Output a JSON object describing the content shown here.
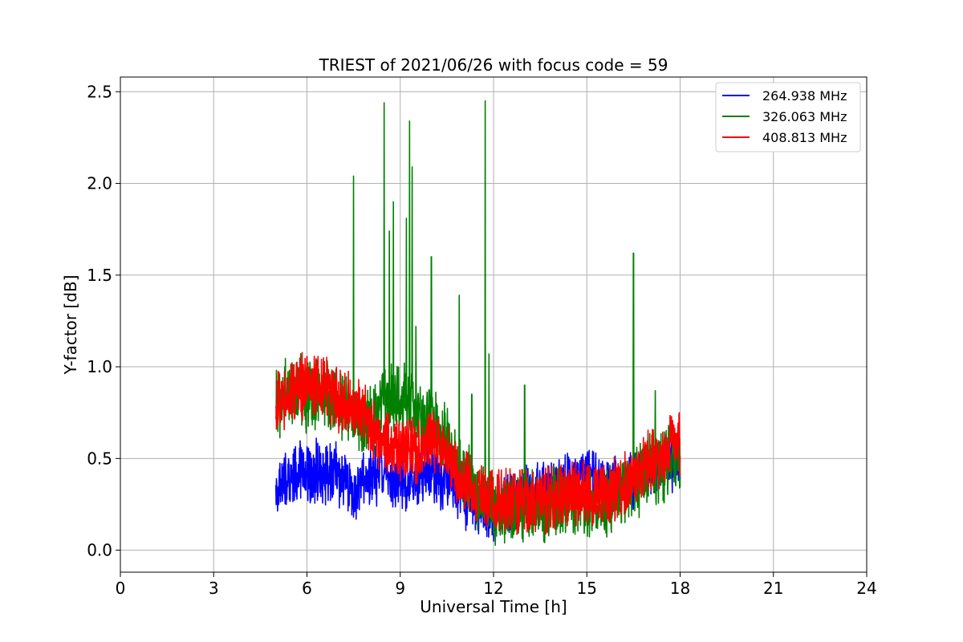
{
  "chart_data": {
    "type": "line",
    "title": "TRIEST of 2021/06/26 with focus code = 59",
    "xlabel": "Universal Time [h]",
    "ylabel": "Y-factor [dB]",
    "xlim": [
      0,
      24
    ],
    "ylim": [
      -0.12,
      2.58
    ],
    "x_ticks": [
      0,
      3,
      6,
      9,
      12,
      15,
      18,
      21,
      24
    ],
    "y_ticks": [
      0.0,
      0.5,
      1.0,
      1.5,
      2.0,
      2.5
    ],
    "x_tick_labels": [
      "0",
      "3",
      "6",
      "9",
      "12",
      "15",
      "18",
      "21",
      "24"
    ],
    "y_tick_labels": [
      "0.0",
      "0.5",
      "1.0",
      "1.5",
      "2.0",
      "2.5"
    ],
    "grid": true,
    "legend_position": "top-right",
    "series": [
      {
        "name": "264.938 MHz",
        "color": "#0000ff",
        "x": [
          5.0,
          5.5,
          6.0,
          6.5,
          7.0,
          7.5,
          8.0,
          8.5,
          9.0,
          9.5,
          10.0,
          10.5,
          11.0,
          11.5,
          12.0,
          12.5,
          13.0,
          13.5,
          14.0,
          14.5,
          15.0,
          15.5,
          16.0,
          16.5,
          17.0,
          17.5,
          18.0
        ],
        "values": [
          0.33,
          0.4,
          0.43,
          0.43,
          0.4,
          0.3,
          0.4,
          0.45,
          0.35,
          0.4,
          0.43,
          0.38,
          0.3,
          0.25,
          0.2,
          0.25,
          0.3,
          0.32,
          0.35,
          0.38,
          0.4,
          0.38,
          0.35,
          0.4,
          0.42,
          0.48,
          0.5
        ],
        "spread": 0.22
      },
      {
        "name": "326.063 MHz",
        "color": "#008000",
        "x": [
          5.0,
          5.5,
          6.0,
          6.5,
          7.0,
          7.5,
          8.0,
          8.5,
          9.0,
          9.5,
          10.0,
          10.5,
          11.0,
          11.5,
          12.0,
          12.5,
          13.0,
          13.5,
          14.0,
          14.5,
          15.0,
          15.5,
          16.0,
          16.5,
          17.0,
          17.5,
          18.0
        ],
        "values": [
          0.8,
          0.88,
          0.85,
          0.85,
          0.82,
          0.7,
          0.68,
          0.8,
          0.85,
          0.75,
          0.72,
          0.6,
          0.42,
          0.3,
          0.2,
          0.22,
          0.25,
          0.22,
          0.25,
          0.25,
          0.25,
          0.25,
          0.3,
          0.35,
          0.45,
          0.45,
          0.52
        ],
        "spread": 0.26,
        "spikes": [
          [
            7.5,
            2.04
          ],
          [
            8.48,
            2.44
          ],
          [
            8.65,
            1.74
          ],
          [
            8.78,
            1.9
          ],
          [
            9.2,
            1.81
          ],
          [
            9.3,
            2.34
          ],
          [
            9.38,
            2.09
          ],
          [
            9.5,
            1.22
          ],
          [
            10.0,
            1.6
          ],
          [
            10.9,
            1.39
          ],
          [
            11.3,
            0.85
          ],
          [
            11.73,
            2.45
          ],
          [
            11.85,
            1.07
          ],
          [
            13.0,
            0.9
          ],
          [
            16.5,
            1.62
          ],
          [
            17.2,
            0.87
          ]
        ]
      },
      {
        "name": "408.813 MHz",
        "color": "#ff0000",
        "x": [
          5.0,
          5.5,
          6.0,
          6.5,
          7.0,
          7.5,
          8.0,
          8.5,
          9.0,
          9.5,
          10.0,
          10.5,
          11.0,
          11.5,
          12.0,
          12.5,
          13.0,
          13.5,
          14.0,
          14.5,
          15.0,
          15.5,
          16.0,
          16.5,
          17.0,
          17.5,
          18.0
        ],
        "values": [
          0.8,
          0.86,
          0.9,
          0.88,
          0.82,
          0.78,
          0.68,
          0.58,
          0.55,
          0.55,
          0.6,
          0.55,
          0.38,
          0.32,
          0.28,
          0.28,
          0.27,
          0.28,
          0.28,
          0.3,
          0.3,
          0.3,
          0.33,
          0.4,
          0.48,
          0.52,
          0.6
        ],
        "spread": 0.24
      }
    ]
  }
}
